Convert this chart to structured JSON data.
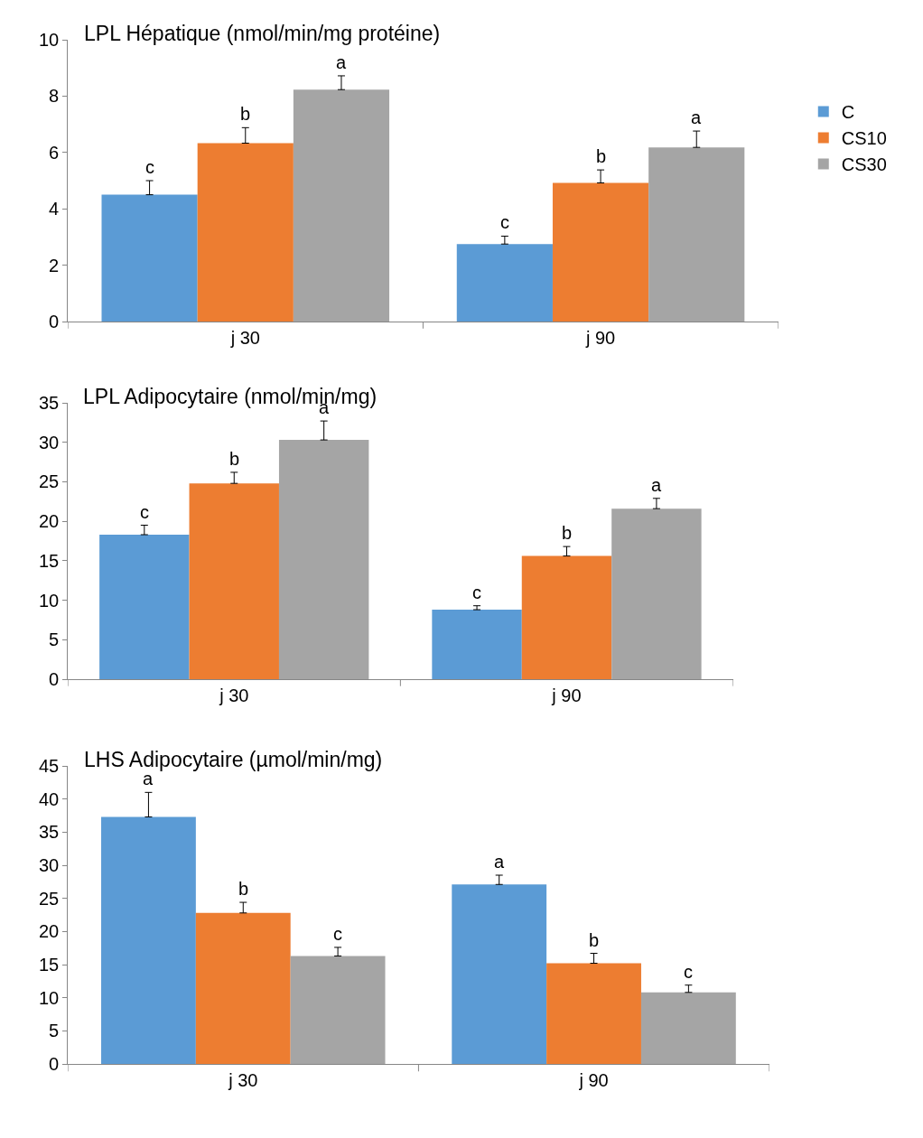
{
  "chart_data": [
    {
      "type": "bar",
      "title": "LPL Hépatique (nmol/min/mg protéine)",
      "categories": [
        "j 30",
        "j 90"
      ],
      "ylim": [
        0,
        10
      ],
      "yticks": [
        0,
        2,
        4,
        6,
        8,
        10
      ],
      "grid": false,
      "legend": "right",
      "series": [
        {
          "name": "C",
          "color": "#5b9bd5",
          "values": [
            4.5,
            2.75
          ],
          "errors": [
            [
              4.5,
              5.0
            ],
            [
              2.75,
              3.03
            ]
          ],
          "value_labels": [
            "c",
            "c"
          ]
        },
        {
          "name": "CS10",
          "color": "#ed7d31",
          "values": [
            6.33,
            4.92
          ],
          "errors": [
            [
              6.33,
              6.88
            ],
            [
              4.92,
              5.38
            ]
          ],
          "value_labels": [
            "b",
            "b"
          ]
        },
        {
          "name": "CS30",
          "color": "#a5a5a5",
          "values": [
            8.23,
            6.18
          ],
          "errors": [
            [
              8.23,
              8.72
            ],
            [
              6.18,
              6.76
            ]
          ],
          "value_labels": [
            "a",
            "a"
          ]
        }
      ]
    },
    {
      "type": "bar",
      "title": "LPL Adipocytaire (nmol/min/mg)",
      "categories": [
        "j 30",
        "j 90"
      ],
      "ylim": [
        0,
        35
      ],
      "yticks": [
        0,
        5,
        10,
        15,
        20,
        25,
        30,
        35
      ],
      "grid": false,
      "series": [
        {
          "color": "#5b9bd5",
          "values": [
            18.3,
            8.8
          ],
          "errors": [
            [
              18.3,
              19.5
            ],
            [
              8.8,
              9.3
            ]
          ],
          "value_labels": [
            "c",
            "c"
          ]
        },
        {
          "color": "#ed7d31",
          "values": [
            24.8,
            15.6
          ],
          "errors": [
            [
              24.8,
              26.2
            ],
            [
              15.6,
              16.8
            ]
          ],
          "value_labels": [
            "b",
            "b"
          ]
        },
        {
          "color": "#a5a5a5",
          "values": [
            30.3,
            21.6
          ],
          "errors": [
            [
              30.3,
              32.7
            ],
            [
              21.6,
              22.9
            ]
          ],
          "value_labels": [
            "a",
            "a"
          ]
        }
      ]
    },
    {
      "type": "bar",
      "title": "LHS Adipocytaire (µmol/min/mg)",
      "categories": [
        "j 30",
        "j 90"
      ],
      "ylim": [
        0,
        45
      ],
      "yticks": [
        0,
        5,
        10,
        15,
        20,
        25,
        30,
        35,
        40,
        45
      ],
      "grid": false,
      "series": [
        {
          "color": "#5b9bd5",
          "values": [
            37.3,
            27.1
          ],
          "errors": [
            [
              37.3,
              41.0
            ],
            [
              27.1,
              28.5
            ]
          ],
          "value_labels": [
            "a",
            "a"
          ]
        },
        {
          "color": "#ed7d31",
          "values": [
            22.8,
            15.2
          ],
          "errors": [
            [
              22.8,
              24.4
            ],
            [
              15.2,
              16.7
            ]
          ],
          "value_labels": [
            "b",
            "b"
          ]
        },
        {
          "color": "#a5a5a5",
          "values": [
            16.3,
            10.8
          ],
          "errors": [
            [
              16.3,
              17.6
            ],
            [
              10.8,
              11.9
            ]
          ],
          "value_labels": [
            "c",
            "c"
          ]
        }
      ]
    }
  ]
}
